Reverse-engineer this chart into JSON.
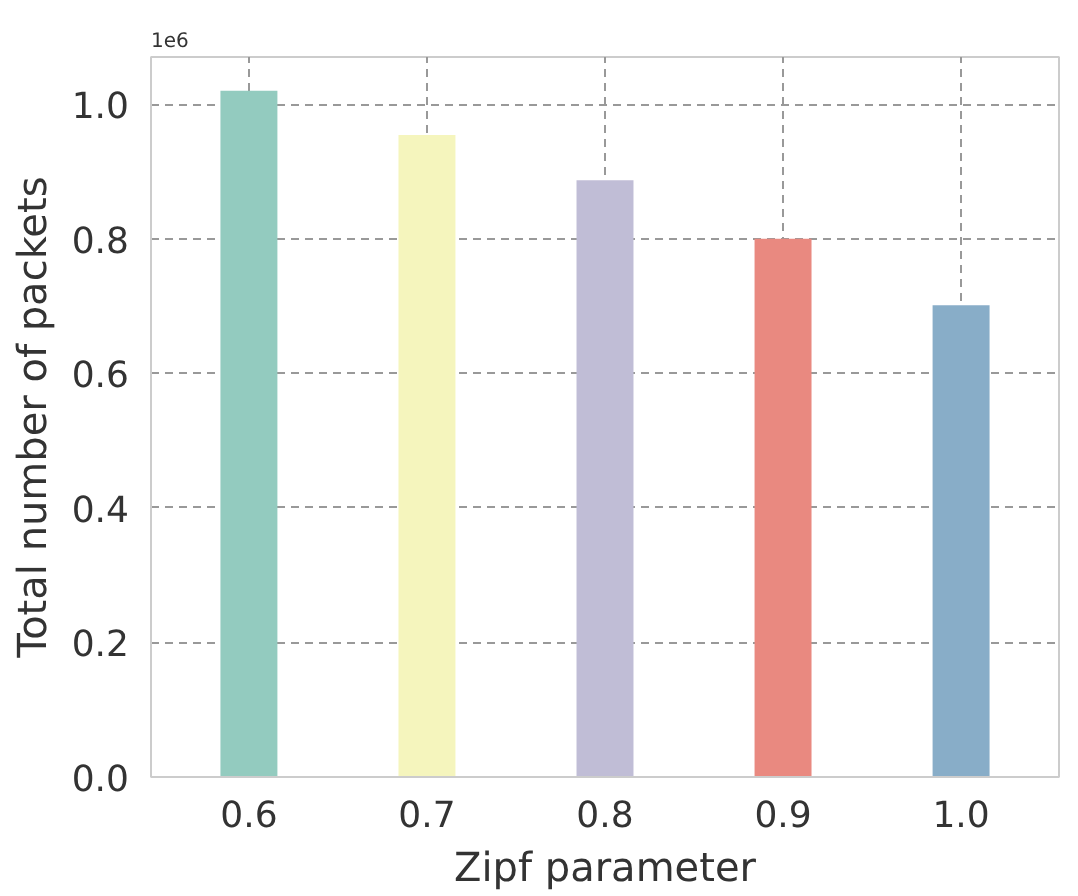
{
  "chart_data": {
    "type": "bar",
    "xlabel": "Zipf parameter",
    "ylabel": "Total number of packets",
    "categories": [
      "0.6",
      "0.7",
      "0.8",
      "0.9",
      "1.0"
    ],
    "values": [
      1.02,
      0.954,
      0.887,
      0.8,
      0.701
    ],
    "colors": [
      "#93cbbf",
      "#f5f5bd",
      "#c0bdd6",
      "#e98980",
      "#88adc8"
    ],
    "ylim": [
      0,
      1.07
    ],
    "yticks": [
      {
        "value": 0,
        "label": "0.0"
      },
      0.2,
      0.4,
      0.6,
      0.8,
      {
        "value": 1,
        "label": "1.0"
      }
    ],
    "annotations": [
      "1e6"
    ],
    "grid": true
  }
}
